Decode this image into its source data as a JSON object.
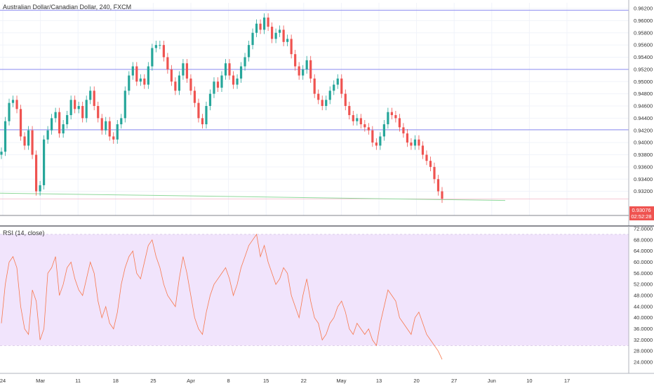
{
  "chart_data": [
    {
      "type": "candlestick",
      "title": "Australian Dollar/Canadian Dollar, 240, FXCM",
      "ylim": [
        0.93,
        0.962
      ],
      "y_ticks": [
        "0.96200",
        "0.96000",
        "0.95800",
        "0.95600",
        "0.95400",
        "0.95200",
        "0.95000",
        "0.94800",
        "0.94600",
        "0.94400",
        "0.94200",
        "0.94000",
        "0.93800",
        "0.93600",
        "0.93400",
        "0.93200"
      ],
      "x_ticks": [
        "24",
        "Mar",
        "11",
        "18",
        "25",
        "Apr",
        "8",
        "15",
        "22",
        "May",
        "13",
        "20",
        "27",
        "Jun",
        "10",
        "17"
      ],
      "last_price": "0.93076",
      "countdown": "02:52:28",
      "horizontal_lines": [
        0.9617,
        0.952,
        0.9421
      ],
      "moving_average_endpoints": [
        0.9317,
        0.9305
      ],
      "series": [
        {
          "name": "",
          "values": [
            0.9385,
            0.9435,
            0.9465,
            0.947,
            0.9455,
            0.941,
            0.9395,
            0.942,
            0.938,
            0.932,
            0.933,
            0.9405,
            0.942,
            0.944,
            0.945,
            0.9415,
            0.943,
            0.9445,
            0.947,
            0.9455,
            0.946,
            0.944,
            0.947,
            0.9485,
            0.946,
            0.944,
            0.942,
            0.9435,
            0.941,
            0.9405,
            0.943,
            0.944,
            0.9485,
            0.951,
            0.9525,
            0.95,
            0.9505,
            0.9495,
            0.9525,
            0.9555,
            0.956,
            0.956,
            0.954,
            0.952,
            0.95,
            0.9485,
            0.951,
            0.953,
            0.9505,
            0.9485,
            0.9465,
            0.944,
            0.943,
            0.946,
            0.948,
            0.95,
            0.949,
            0.951,
            0.953,
            0.951,
            0.9495,
            0.9505,
            0.9525,
            0.954,
            0.956,
            0.958,
            0.9595,
            0.9585,
            0.9605,
            0.959,
            0.957,
            0.958,
            0.9585,
            0.9565,
            0.957,
            0.9545,
            0.9525,
            0.951,
            0.952,
            0.9535,
            0.9505,
            0.948,
            0.947,
            0.946,
            0.947,
            0.9485,
            0.9495,
            0.9505,
            0.948,
            0.946,
            0.9445,
            0.9435,
            0.944,
            0.943,
            0.9425,
            0.942,
            0.94,
            0.9395,
            0.941,
            0.943,
            0.945,
            0.9445,
            0.944,
            0.9425,
            0.9415,
            0.94,
            0.9395,
            0.9405,
            0.9395,
            0.938,
            0.937,
            0.936,
            0.934,
            0.932,
            0.9308
          ]
        }
      ]
    },
    {
      "type": "line",
      "title": "RSI (14, close)",
      "ylim": [
        22,
        72
      ],
      "y_ticks": [
        "72.0000",
        "68.0000",
        "64.0000",
        "60.0000",
        "56.0000",
        "52.0000",
        "48.0000",
        "44.0000",
        "40.0000",
        "36.0000",
        "32.0000",
        "28.0000",
        "24.0000"
      ],
      "band": [
        30,
        70
      ],
      "series": [
        {
          "name": "",
          "values": [
            38,
            52,
            60,
            62,
            58,
            44,
            36,
            34,
            50,
            46,
            32,
            36,
            56,
            58,
            62,
            48,
            52,
            58,
            60,
            54,
            50,
            48,
            54,
            60,
            56,
            46,
            40,
            44,
            38,
            36,
            42,
            52,
            58,
            62,
            64,
            56,
            54,
            60,
            66,
            68,
            62,
            58,
            52,
            48,
            46,
            44,
            54,
            62,
            56,
            48,
            40,
            36,
            34,
            42,
            48,
            52,
            54,
            56,
            58,
            54,
            48,
            52,
            58,
            62,
            66,
            68,
            70,
            62,
            66,
            60,
            56,
            52,
            54,
            58,
            56,
            48,
            44,
            40,
            48,
            54,
            46,
            40,
            38,
            32,
            34,
            38,
            40,
            44,
            46,
            42,
            36,
            34,
            38,
            36,
            34,
            36,
            32,
            30,
            38,
            44,
            50,
            48,
            46,
            40,
            38,
            36,
            34,
            40,
            42,
            38,
            34,
            32,
            30,
            28,
            25
          ]
        }
      ]
    }
  ]
}
